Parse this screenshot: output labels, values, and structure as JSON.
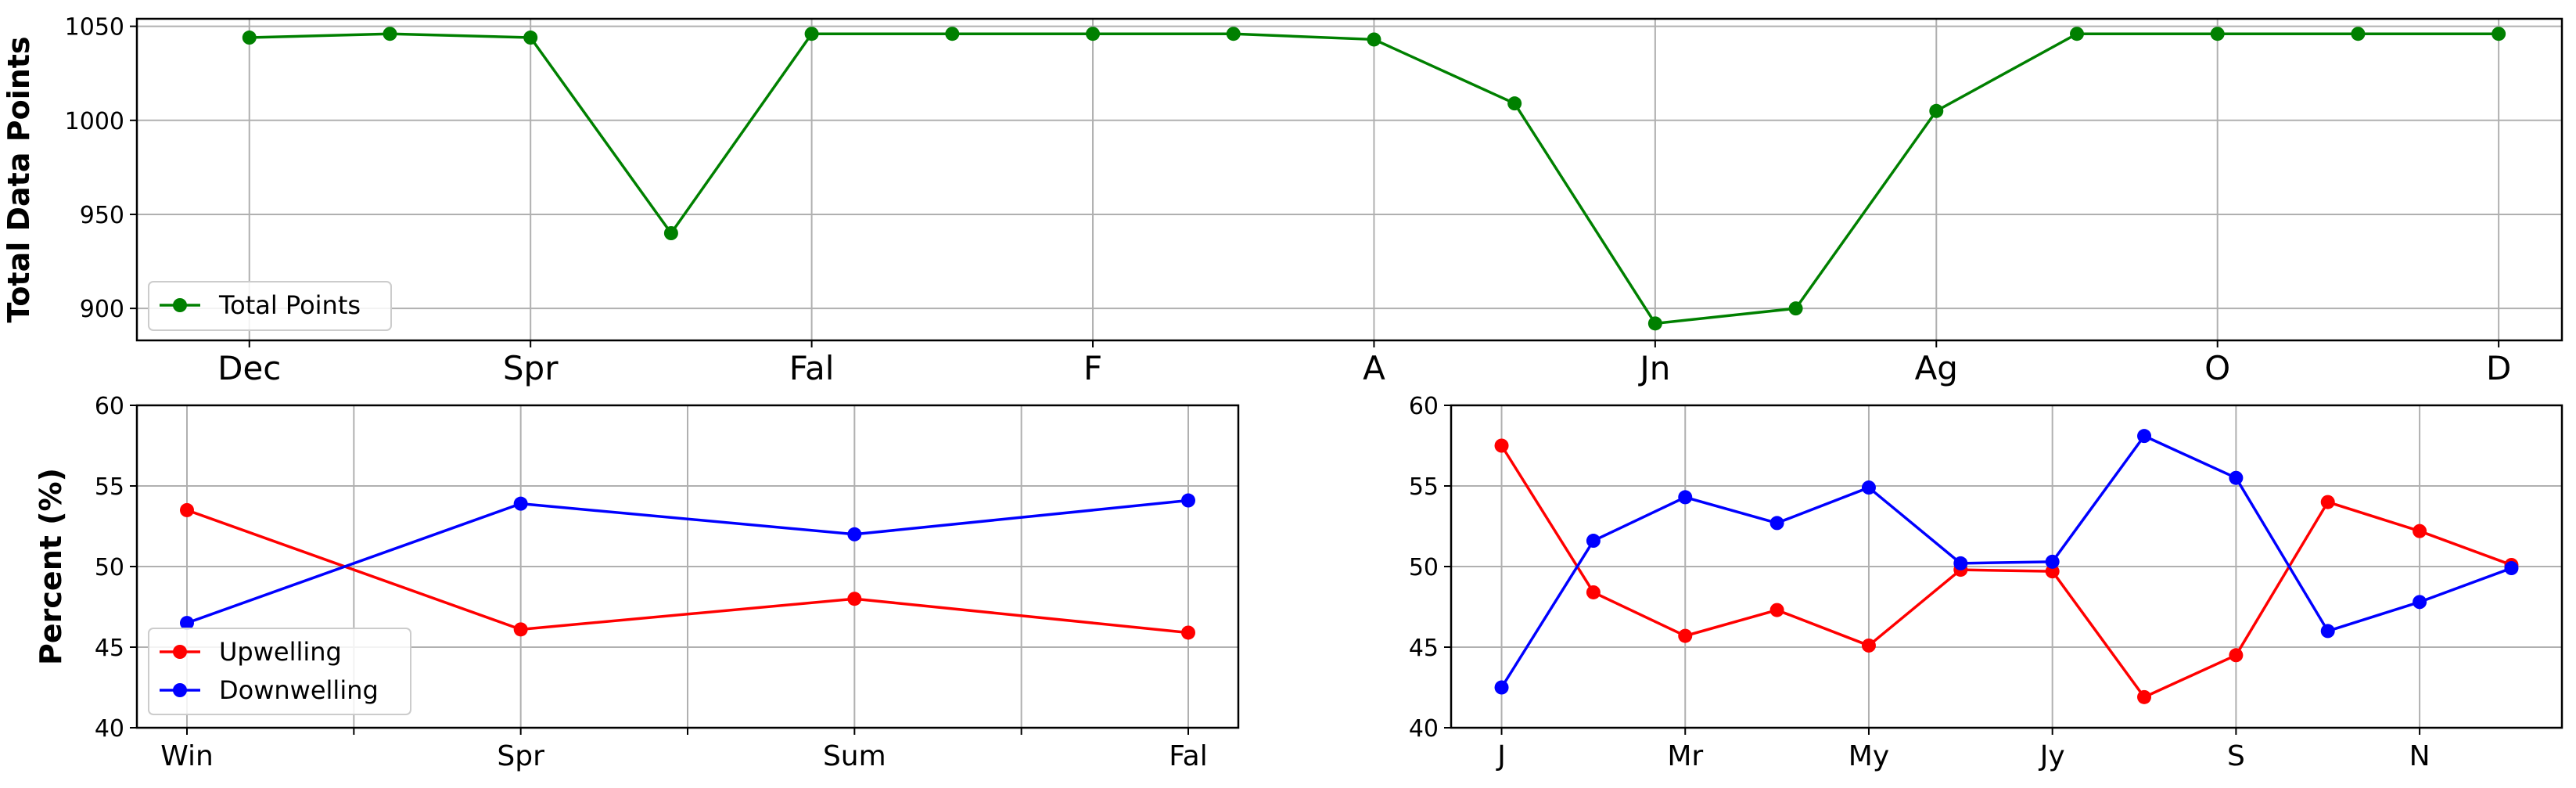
{
  "chart_data": [
    {
      "type": "line",
      "title": "",
      "xlabel": "",
      "ylabel": "Total Data Points",
      "ylim": [
        883,
        1054
      ],
      "yticks": [
        900,
        950,
        1000,
        1050
      ],
      "grid": true,
      "legend_position": "lower-left",
      "xticks": [
        {
          "x": 0,
          "label": "Dec"
        },
        {
          "x": 2,
          "label": "Spr"
        },
        {
          "x": 4,
          "label": "Fal"
        },
        {
          "x": 6,
          "label": "F"
        },
        {
          "x": 8,
          "label": "A"
        },
        {
          "x": 10,
          "label": "Jn"
        },
        {
          "x": 12,
          "label": "Ag"
        },
        {
          "x": 14,
          "label": "O"
        },
        {
          "x": 16,
          "label": "D"
        }
      ],
      "series": [
        {
          "name": "Total Points",
          "color": "#008000",
          "x": [
            0,
            1,
            2,
            3,
            4,
            5,
            6,
            7,
            8,
            9,
            10,
            11,
            12,
            13,
            14,
            15,
            16
          ],
          "values": [
            1044,
            1046,
            1044,
            940,
            1046,
            1046,
            1046,
            1046,
            1043,
            1009,
            892,
            900,
            1005,
            1046,
            1046,
            1046,
            1046
          ]
        }
      ]
    },
    {
      "type": "line",
      "title": "",
      "xlabel": "",
      "ylabel": "Percent (%)",
      "ylim": [
        40,
        60
      ],
      "yticks": [
        40,
        45,
        50,
        55,
        60
      ],
      "grid": true,
      "legend_position": "lower-left",
      "xticks": [
        {
          "x": 0,
          "label": "Win"
        },
        {
          "x": 0.5,
          "label": ""
        },
        {
          "x": 1,
          "label": "Spr"
        },
        {
          "x": 1.5,
          "label": ""
        },
        {
          "x": 2,
          "label": "Sum"
        },
        {
          "x": 2.5,
          "label": ""
        },
        {
          "x": 3,
          "label": "Fal"
        }
      ],
      "series": [
        {
          "name": "Upwelling",
          "color": "#ff0000",
          "x": [
            0,
            1,
            2,
            3
          ],
          "values": [
            53.5,
            46.1,
            48.0,
            45.9
          ]
        },
        {
          "name": "Downwelling",
          "color": "#0000ff",
          "x": [
            0,
            1,
            2,
            3
          ],
          "values": [
            46.5,
            53.9,
            52.0,
            54.1
          ]
        }
      ]
    },
    {
      "type": "line",
      "title": "",
      "xlabel": "",
      "ylabel": "",
      "ylim": [
        40,
        60
      ],
      "yticks": [
        40,
        45,
        50,
        55,
        60
      ],
      "grid": true,
      "legend_position": "none",
      "xticks": [
        {
          "x": 0,
          "label": "J"
        },
        {
          "x": 2,
          "label": "Mr"
        },
        {
          "x": 4,
          "label": "My"
        },
        {
          "x": 6,
          "label": "Jy"
        },
        {
          "x": 8,
          "label": "S"
        },
        {
          "x": 10,
          "label": "N"
        }
      ],
      "series": [
        {
          "name": "",
          "color": "#ff0000",
          "x": [
            0,
            1,
            2,
            3,
            4,
            5,
            6,
            7,
            8,
            9,
            10,
            11
          ],
          "values": [
            57.5,
            48.4,
            45.7,
            47.3,
            45.1,
            49.8,
            49.7,
            41.9,
            44.5,
            54.0,
            52.2,
            50.1
          ]
        },
        {
          "name": "",
          "color": "#0000ff",
          "x": [
            0,
            1,
            2,
            3,
            4,
            5,
            6,
            7,
            8,
            9,
            10,
            11
          ],
          "values": [
            42.5,
            51.6,
            54.3,
            52.7,
            54.9,
            50.2,
            50.3,
            58.1,
            55.5,
            46.0,
            47.8,
            49.9
          ]
        }
      ]
    }
  ]
}
